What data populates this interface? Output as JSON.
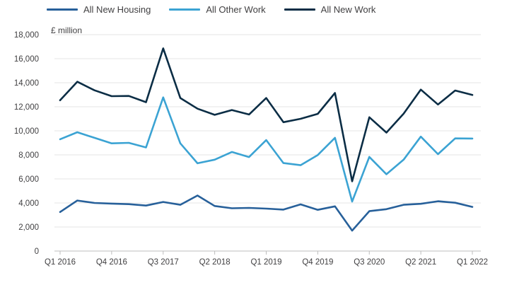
{
  "chart_data": {
    "type": "line",
    "unit_label": "£ million",
    "title": "",
    "xlabel": "",
    "ylabel": "",
    "ylim": [
      0,
      18000
    ],
    "yticks": [
      0,
      2000,
      4000,
      6000,
      8000,
      10000,
      12000,
      14000,
      16000,
      18000
    ],
    "grid": true,
    "legend_position": "top-left",
    "categories": [
      "Q1 2016",
      "Q2 2016",
      "Q3 2016",
      "Q4 2016",
      "Q1 2017",
      "Q2 2017",
      "Q3 2017",
      "Q4 2017",
      "Q1 2018",
      "Q2 2018",
      "Q3 2018",
      "Q4 2018",
      "Q1 2019",
      "Q2 2019",
      "Q3 2019",
      "Q4 2019",
      "Q1 2020",
      "Q2 2020",
      "Q3 2020",
      "Q4 2020",
      "Q1 2021",
      "Q2 2021",
      "Q3 2021",
      "Q4 2021",
      "Q1 2022"
    ],
    "tick_labels": [
      "Q1 2016",
      "Q4 2016",
      "Q3 2017",
      "Q2 2018",
      "Q1 2019",
      "Q4 2019",
      "Q3 2020",
      "Q2 2021",
      "Q1 2022"
    ],
    "series": [
      {
        "name": "All New Housing",
        "color": "#27609a",
        "values": [
          3250,
          4200,
          4000,
          3950,
          3900,
          3780,
          4080,
          3850,
          4620,
          3750,
          3560,
          3590,
          3530,
          3450,
          3880,
          3430,
          3720,
          1700,
          3320,
          3480,
          3850,
          3930,
          4140,
          4020,
          3670
        ]
      },
      {
        "name": "All Other Work",
        "color": "#3ba3d3",
        "values": [
          9300,
          9880,
          9420,
          8960,
          9000,
          8620,
          12780,
          8960,
          7300,
          7600,
          8240,
          7820,
          9230,
          7320,
          7140,
          7990,
          9420,
          4120,
          7830,
          6390,
          7600,
          9520,
          8060,
          9370,
          9360
        ]
      },
      {
        "name": "All New Work",
        "color": "#0b2d45",
        "values": [
          12540,
          14080,
          13370,
          12880,
          12900,
          12380,
          16860,
          12730,
          11840,
          11330,
          11730,
          11360,
          12730,
          10720,
          11000,
          11410,
          13150,
          5800,
          11130,
          9850,
          11430,
          13430,
          12190,
          13350,
          12980
        ]
      }
    ]
  }
}
